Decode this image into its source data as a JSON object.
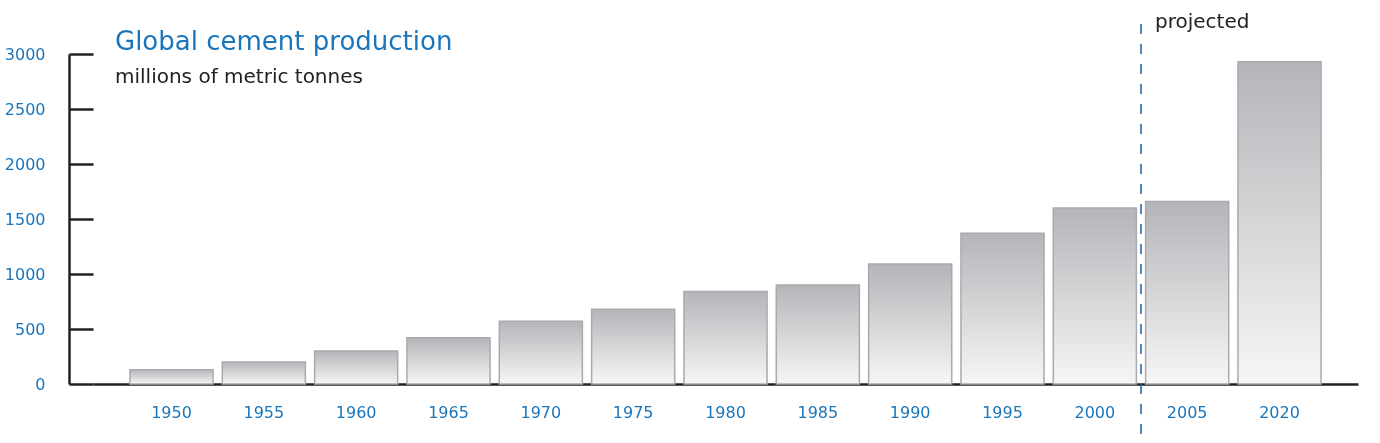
{
  "chart_data": {
    "type": "bar",
    "title": "Global cement production",
    "subtitle": "millions of metric tonnes",
    "categories": [
      "1950",
      "1955",
      "1960",
      "1965",
      "1970",
      "1975",
      "1980",
      "1985",
      "1990",
      "1995",
      "2000",
      "2005",
      "2020"
    ],
    "values": [
      130,
      200,
      300,
      420,
      570,
      680,
      840,
      900,
      1090,
      1370,
      1600,
      1660,
      2930
    ],
    "color": "#b4b5b9",
    "ylim": [
      0,
      3000
    ],
    "yticks": [
      0,
      500,
      1000,
      1500,
      2000,
      2500,
      3000
    ],
    "grid": false,
    "ref_lines": [
      {
        "axis": "x",
        "value": "2005",
        "label": "projected",
        "color": "#1a5fa8",
        "line_style": "dashed"
      }
    ]
  }
}
